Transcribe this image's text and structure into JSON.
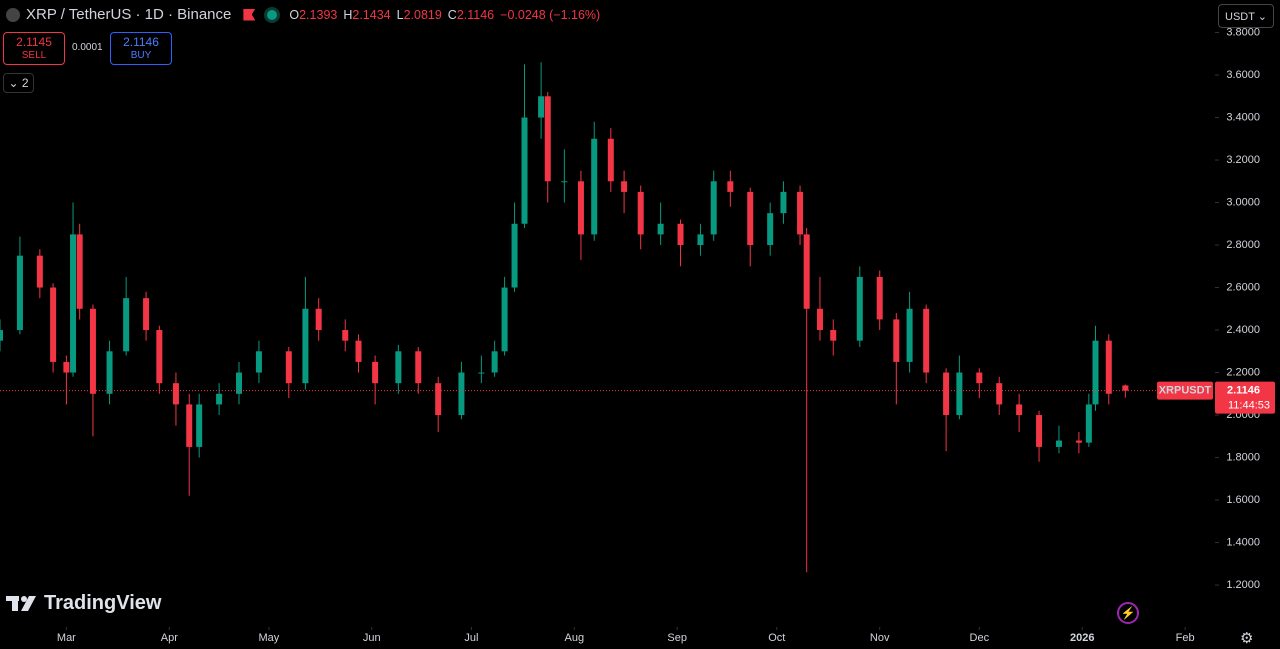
{
  "header": {
    "symbol": "XRP / TetherUS · 1D · Binance",
    "ohlc": [
      {
        "label": "O",
        "value": 2.1393
      },
      {
        "label": "H",
        "value": 2.1434
      },
      {
        "label": "L",
        "value": 2.0819
      },
      {
        "label": "C",
        "value": 2.1146
      }
    ],
    "change": "−0.0248 (−1.16%)"
  },
  "trade": {
    "sell_price": 2.1145,
    "sell": "SELL",
    "spread": 0.0001,
    "buy_price": 2.1146,
    "buy": "BUY"
  },
  "indicators_toggle": "2",
  "currency": "USDT",
  "logo": "TradingView",
  "chart_data": {
    "type": "candlestick",
    "x": [
      0,
      6,
      12,
      16,
      20,
      22,
      24,
      28,
      33,
      38,
      44,
      48,
      53,
      57,
      60,
      66,
      72,
      78,
      87,
      92,
      96,
      104,
      108,
      113,
      120,
      126,
      132,
      139,
      145,
      149,
      152,
      155,
      158,
      163,
      165,
      170,
      175,
      179,
      184,
      188,
      193,
      199,
      205,
      211,
      215,
      220,
      226,
      232,
      236,
      241,
      243,
      247,
      251,
      259,
      265,
      270,
      274,
      279,
      285,
      289,
      295,
      301,
      307,
      313,
      319,
      325,
      328,
      330,
      334,
      339
    ],
    "open": [
      2.35,
      2.4,
      2.75,
      2.6,
      2.25,
      2.2,
      2.85,
      2.5,
      2.1,
      2.3,
      2.55,
      2.4,
      2.15,
      2.05,
      1.85,
      2.05,
      2.1,
      2.2,
      2.3,
      2.15,
      2.5,
      2.4,
      2.35,
      2.25,
      2.15,
      2.3,
      2.15,
      2.0,
      2.2,
      2.2,
      2.3,
      2.6,
      2.9,
      3.4,
      3.5,
      3.1,
      3.1,
      2.85,
      3.3,
      3.1,
      3.05,
      2.85,
      2.9,
      2.8,
      2.85,
      3.1,
      3.05,
      2.8,
      2.95,
      3.05,
      2.85,
      2.5,
      2.4,
      2.35,
      2.65,
      2.45,
      2.25,
      2.5,
      2.2,
      2.0,
      2.2,
      2.15,
      2.05,
      2.0,
      1.85,
      1.88,
      1.87,
      2.05,
      2.35,
      2.1393
    ],
    "high": [
      2.45,
      2.84,
      2.78,
      2.62,
      2.28,
      3.0,
      2.9,
      2.52,
      2.35,
      2.65,
      2.58,
      2.42,
      2.2,
      2.1,
      2.1,
      2.15,
      2.25,
      2.35,
      2.32,
      2.65,
      2.55,
      2.45,
      2.38,
      2.28,
      2.33,
      2.32,
      2.18,
      2.25,
      2.28,
      2.35,
      2.65,
      3.0,
      3.65,
      3.66,
      3.52,
      3.25,
      3.15,
      3.38,
      3.35,
      3.15,
      3.08,
      3.0,
      2.92,
      2.9,
      3.15,
      3.15,
      3.07,
      3.0,
      3.1,
      3.08,
      2.88,
      2.65,
      2.45,
      2.7,
      2.68,
      2.48,
      2.58,
      2.52,
      2.22,
      2.28,
      2.22,
      2.18,
      2.1,
      2.02,
      1.95,
      1.92,
      2.1,
      2.42,
      2.38,
      2.1434
    ],
    "low": [
      2.3,
      2.38,
      2.55,
      2.2,
      2.05,
      2.18,
      2.45,
      1.9,
      2.05,
      2.28,
      2.35,
      2.1,
      1.95,
      1.62,
      1.8,
      2.0,
      2.05,
      2.15,
      2.08,
      2.12,
      2.35,
      2.3,
      2.2,
      2.05,
      2.1,
      2.1,
      1.92,
      1.98,
      2.15,
      2.18,
      2.28,
      2.58,
      2.88,
      3.3,
      3.0,
      3.0,
      2.73,
      2.82,
      3.05,
      2.95,
      2.78,
      2.8,
      2.7,
      2.75,
      2.82,
      2.98,
      2.7,
      2.75,
      2.9,
      2.8,
      1.26,
      2.35,
      2.28,
      2.32,
      2.4,
      2.05,
      2.2,
      2.15,
      1.83,
      1.98,
      2.08,
      2.0,
      1.92,
      1.78,
      1.82,
      1.82,
      1.85,
      2.02,
      2.05,
      2.0819
    ],
    "close": [
      2.4,
      2.75,
      2.6,
      2.25,
      2.2,
      2.85,
      2.5,
      2.1,
      2.3,
      2.55,
      2.4,
      2.15,
      2.05,
      1.85,
      2.05,
      2.1,
      2.2,
      2.3,
      2.15,
      2.5,
      2.4,
      2.35,
      2.25,
      2.15,
      2.3,
      2.15,
      2.0,
      2.2,
      2.2,
      2.3,
      2.6,
      2.9,
      3.4,
      3.5,
      3.1,
      3.1,
      2.85,
      3.3,
      3.1,
      3.05,
      2.85,
      2.9,
      2.8,
      2.85,
      3.1,
      3.05,
      2.8,
      2.95,
      3.05,
      2.85,
      2.5,
      2.4,
      2.35,
      2.65,
      2.45,
      2.25,
      2.5,
      2.2,
      2.0,
      2.2,
      2.15,
      2.05,
      2.0,
      1.85,
      1.88,
      1.87,
      2.05,
      2.35,
      2.1,
      2.1146
    ],
    "up_color": "#089981",
    "down_color": "#f23645",
    "xlim": [
      0,
      366
    ],
    "xticks": [
      {
        "value": 20,
        "label": "Mar"
      },
      {
        "value": 51,
        "label": "Apr"
      },
      {
        "value": 81,
        "label": "May"
      },
      {
        "value": 112,
        "label": "Jun"
      },
      {
        "value": 142,
        "label": "Jul"
      },
      {
        "value": 173,
        "label": "Aug"
      },
      {
        "value": 204,
        "label": "Sep"
      },
      {
        "value": 234,
        "label": "Oct"
      },
      {
        "value": 265,
        "label": "Nov"
      },
      {
        "value": 295,
        "label": "Dec"
      },
      {
        "value": 326,
        "label": "2026"
      },
      {
        "value": 357,
        "label": "Feb"
      }
    ],
    "ylim": [
      1.012,
      3.953
    ],
    "yticks": [
      {
        "value": 1.2,
        "label": "1.2000"
      },
      {
        "value": 1.4,
        "label": "1.4000"
      },
      {
        "value": 1.6,
        "label": "1.6000"
      },
      {
        "value": 1.8,
        "label": "1.8000"
      },
      {
        "value": 2.0,
        "label": "2.0000"
      },
      {
        "value": 2.2,
        "label": "2.2000"
      },
      {
        "value": 2.4,
        "label": "2.4000"
      },
      {
        "value": 2.6,
        "label": "2.6000"
      },
      {
        "value": 2.8,
        "label": "2.8000"
      },
      {
        "value": 3.0,
        "label": "3.0000"
      },
      {
        "value": 3.2,
        "label": "3.2000"
      },
      {
        "value": 3.4,
        "label": "3.4000"
      },
      {
        "value": 3.6,
        "label": "3.6000"
      },
      {
        "value": 3.8,
        "label": "3.8000"
      }
    ],
    "last_price": 2.1146,
    "last_symbol": "XRPUSDT",
    "countdown": "11:44:53"
  }
}
